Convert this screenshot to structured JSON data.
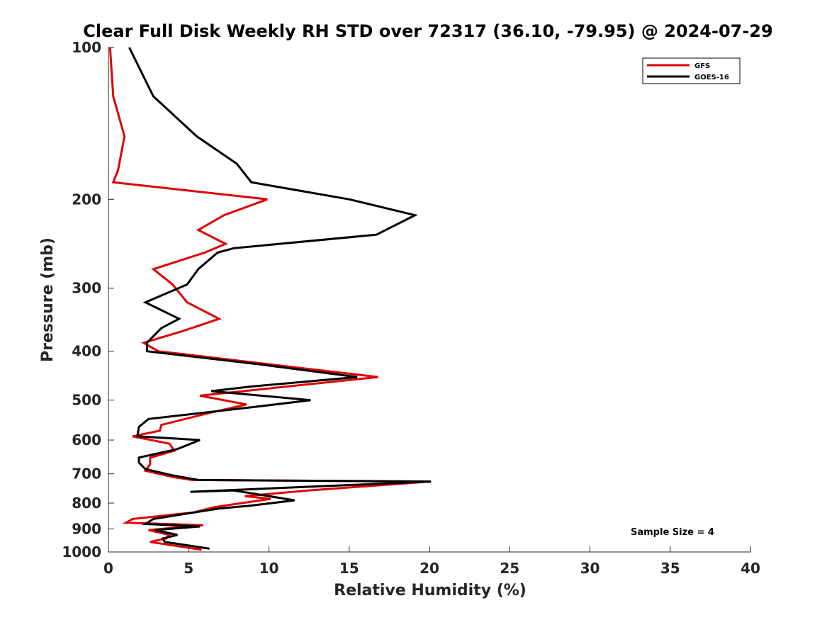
{
  "chart_data": {
    "type": "line",
    "title": "Clear Full Disk Weekly RH STD over 72317 (36.10, -79.95) @ 2024-07-29",
    "xlabel": "Relative Humidity (%)",
    "ylabel": "Pressure (mb)",
    "xlim": [
      0,
      40
    ],
    "ylim": [
      100,
      1000
    ],
    "y_scale": "log",
    "y_reversed": true,
    "x_ticks": [
      "0",
      "5",
      "10",
      "15",
      "20",
      "25",
      "30",
      "35",
      "40"
    ],
    "y_ticks": [
      "100",
      "200",
      "300",
      "400",
      "500",
      "600",
      "700",
      "800",
      "900",
      "1000"
    ],
    "grid": false,
    "legend_position": "top-right",
    "annotation": "Sample Size = 4",
    "series": [
      {
        "name": "GFS",
        "color": "#e00000",
        "points": [
          [
            0.1,
            100
          ],
          [
            0.3,
            125
          ],
          [
            1.0,
            150
          ],
          [
            0.6,
            175
          ],
          [
            0.3,
            185
          ],
          [
            9.9,
            200
          ],
          [
            7.2,
            215
          ],
          [
            5.6,
            230
          ],
          [
            7.3,
            245
          ],
          [
            6.0,
            255
          ],
          [
            2.8,
            275
          ],
          [
            4.0,
            295
          ],
          [
            4.9,
            320
          ],
          [
            6.9,
            345
          ],
          [
            4.6,
            365
          ],
          [
            2.2,
            385
          ],
          [
            3.1,
            400
          ],
          [
            16.8,
            450
          ],
          [
            5.7,
            490
          ],
          [
            8.6,
            510
          ],
          [
            6.3,
            530
          ],
          [
            3.3,
            560
          ],
          [
            3.2,
            575
          ],
          [
            1.5,
            590
          ],
          [
            3.8,
            610
          ],
          [
            4.1,
            630
          ],
          [
            2.6,
            650
          ],
          [
            2.6,
            670
          ],
          [
            2.3,
            690
          ],
          [
            4.0,
            710
          ],
          [
            5.2,
            720
          ],
          [
            20.0,
            725
          ],
          [
            12.5,
            755
          ],
          [
            8.5,
            775
          ],
          [
            10.1,
            785
          ],
          [
            6.6,
            815
          ],
          [
            5.3,
            835
          ],
          [
            1.5,
            860
          ],
          [
            1.1,
            875
          ],
          [
            5.9,
            885
          ],
          [
            2.5,
            905
          ],
          [
            3.8,
            925
          ],
          [
            3.6,
            940
          ],
          [
            2.6,
            955
          ],
          [
            5.8,
            990
          ]
        ]
      },
      {
        "name": "GOES-16",
        "color": "#000000",
        "points": [
          [
            1.3,
            100
          ],
          [
            2.8,
            125
          ],
          [
            5.5,
            150
          ],
          [
            8.0,
            170
          ],
          [
            8.9,
            185
          ],
          [
            15.0,
            200
          ],
          [
            19.1,
            215
          ],
          [
            16.7,
            235
          ],
          [
            7.8,
            250
          ],
          [
            6.8,
            255
          ],
          [
            5.6,
            275
          ],
          [
            4.9,
            295
          ],
          [
            2.3,
            320
          ],
          [
            4.4,
            345
          ],
          [
            3.3,
            360
          ],
          [
            2.4,
            385
          ],
          [
            2.4,
            400
          ],
          [
            9.5,
            425
          ],
          [
            15.5,
            450
          ],
          [
            8.9,
            470
          ],
          [
            6.4,
            480
          ],
          [
            12.6,
            500
          ],
          [
            9.3,
            515
          ],
          [
            2.5,
            545
          ],
          [
            1.9,
            565
          ],
          [
            1.8,
            590
          ],
          [
            5.7,
            600
          ],
          [
            4.3,
            625
          ],
          [
            1.9,
            650
          ],
          [
            1.9,
            665
          ],
          [
            2.3,
            685
          ],
          [
            4.0,
            705
          ],
          [
            5.6,
            720
          ],
          [
            20.1,
            725
          ],
          [
            5.1,
            760
          ],
          [
            7.8,
            755
          ],
          [
            11.6,
            790
          ],
          [
            8.8,
            810
          ],
          [
            6.9,
            820
          ],
          [
            2.8,
            860
          ],
          [
            2.3,
            880
          ],
          [
            5.7,
            890
          ],
          [
            2.9,
            905
          ],
          [
            4.3,
            925
          ],
          [
            3.4,
            940
          ],
          [
            3.5,
            955
          ],
          [
            6.3,
            985
          ]
        ]
      }
    ]
  }
}
